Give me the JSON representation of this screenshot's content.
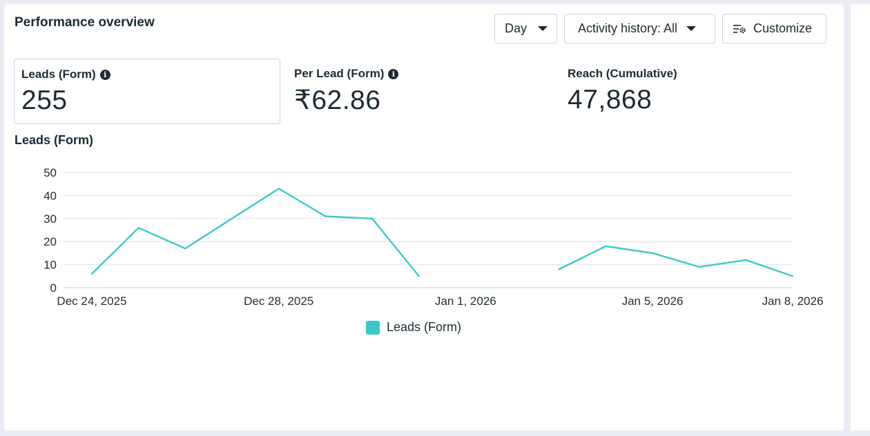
{
  "header": {
    "title": "Performance overview",
    "day_label": "Day",
    "history_label": "Activity history: All",
    "customize_label": "Customize"
  },
  "metrics": [
    {
      "label": "Leads (Form)",
      "value": "255",
      "has_info": true
    },
    {
      "label": "Per Lead (Form)",
      "value": "₹62.86",
      "has_info": true
    },
    {
      "label": "Reach (Cumulative)",
      "value": "47,868",
      "has_info": false
    }
  ],
  "chart_data": {
    "type": "line",
    "title": "Leads (Form)",
    "color": "#3cc8c8",
    "ylim": [
      0,
      50
    ],
    "yticks": [
      0,
      10,
      20,
      30,
      40,
      50
    ],
    "grid": true,
    "legend_position": "bottom-center",
    "x_tick_labels": [
      {
        "date": "2025-12-24",
        "label": "Dec 24, 2025"
      },
      {
        "date": "2025-12-28",
        "label": "Dec 28, 2025"
      },
      {
        "date": "2026-01-01",
        "label": "Jan 1, 2026"
      },
      {
        "date": "2026-01-05",
        "label": "Jan 5, 2026"
      },
      {
        "date": "2026-01-08",
        "label": "Jan 8, 2026"
      }
    ],
    "series": [
      {
        "name": "Leads (Form)",
        "points": [
          {
            "x": "2025-12-24",
            "y": 6
          },
          {
            "x": "2025-12-25",
            "y": 26
          },
          {
            "x": "2025-12-26",
            "y": 17
          },
          {
            "x": "2025-12-27",
            "y": 30
          },
          {
            "x": "2025-12-28",
            "y": 43
          },
          {
            "x": "2025-12-29",
            "y": 31
          },
          {
            "x": "2025-12-30",
            "y": 30
          },
          {
            "x": "2025-12-31",
            "y": 5
          },
          {
            "x": "2026-01-01",
            "y": null
          },
          {
            "x": "2026-01-02",
            "y": null
          },
          {
            "x": "2026-01-03",
            "y": 8
          },
          {
            "x": "2026-01-04",
            "y": 18
          },
          {
            "x": "2026-01-05",
            "y": 15
          },
          {
            "x": "2026-01-06",
            "y": 9
          },
          {
            "x": "2026-01-07",
            "y": 12
          },
          {
            "x": "2026-01-08",
            "y": 5
          }
        ]
      }
    ]
  }
}
